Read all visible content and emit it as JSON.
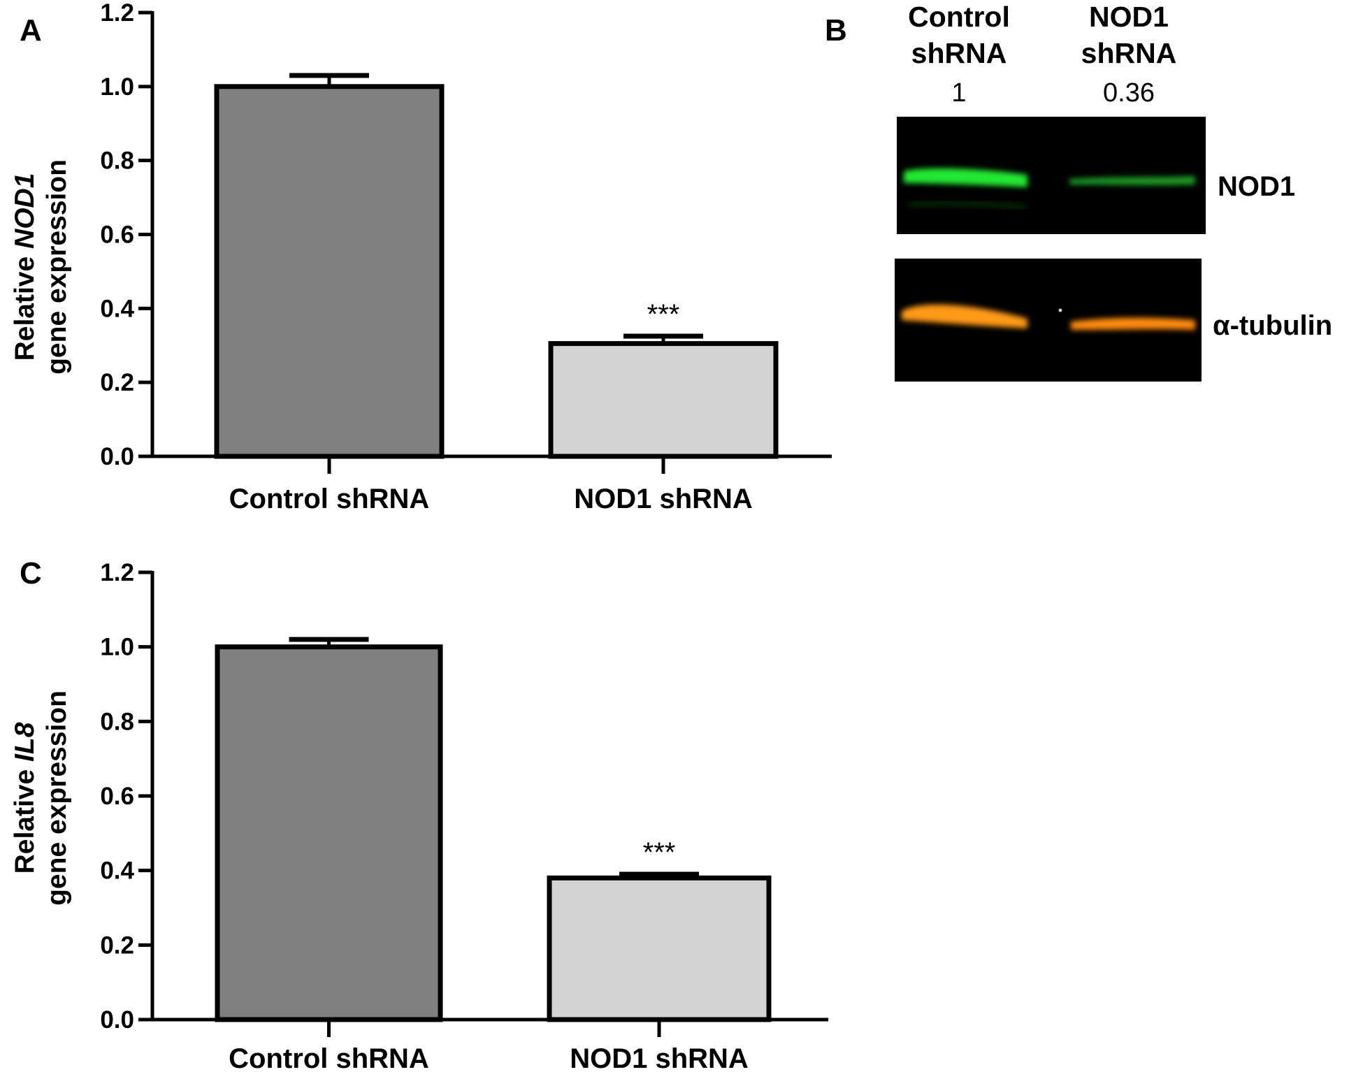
{
  "panel_letters": {
    "a": "A",
    "b": "B",
    "c": "C"
  },
  "chart_data": [
    {
      "panel": "A",
      "type": "bar",
      "categories": [
        "Control shRNA",
        "NOD1 shRNA"
      ],
      "values": [
        1.0,
        0.305
      ],
      "errors": [
        0.03,
        0.02
      ],
      "significance": [
        "",
        "***"
      ],
      "bar_colors": [
        "#808080",
        "#d3d3d3"
      ],
      "ylabel_line1_prefix": "Relative ",
      "ylabel_line1_gene": "NOD1",
      "ylabel_line2": "gene expression",
      "ylim": [
        0,
        1.2
      ],
      "yticks": [
        "0.0",
        "0.2",
        "0.4",
        "0.6",
        "0.8",
        "1.0",
        "1.2"
      ],
      "ytick_values": [
        0,
        0.2,
        0.4,
        0.6,
        0.8,
        1.0,
        1.2
      ]
    },
    {
      "panel": "C",
      "type": "bar",
      "categories": [
        "Control shRNA",
        "NOD1 shRNA"
      ],
      "values": [
        1.0,
        0.38
      ],
      "errors": [
        0.02,
        0.01
      ],
      "significance": [
        "",
        "***"
      ],
      "bar_colors": [
        "#808080",
        "#d3d3d3"
      ],
      "ylabel_line1_prefix": "Relative ",
      "ylabel_line1_gene": "IL8",
      "ylabel_line2": "gene expression",
      "ylim": [
        0,
        1.2
      ],
      "yticks": [
        "0.0",
        "0.2",
        "0.4",
        "0.6",
        "0.8",
        "1.0",
        "1.2"
      ],
      "ytick_values": [
        0,
        0.2,
        0.4,
        0.6,
        0.8,
        1.0,
        1.2
      ]
    }
  ],
  "blot": {
    "lanes": [
      {
        "line1": "Control",
        "line2": "shRNA",
        "value": "1"
      },
      {
        "line1": "NOD1",
        "line2": "shRNA",
        "value": "0.36"
      }
    ],
    "proteins": [
      "NOD1",
      "α-tubulin"
    ],
    "band_colors": [
      "#22e832",
      "#ff9a12"
    ]
  }
}
